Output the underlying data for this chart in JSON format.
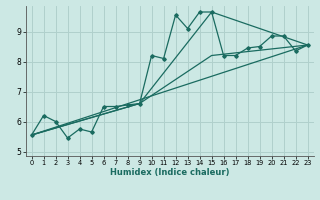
{
  "title": "",
  "xlabel": "Humidex (Indice chaleur)",
  "bg_color": "#cce8e4",
  "grid_color": "#b0d0cc",
  "line_color": "#1a6b60",
  "xlim": [
    -0.5,
    23.5
  ],
  "ylim": [
    4.85,
    9.85
  ],
  "yticks": [
    5,
    6,
    7,
    8,
    9
  ],
  "xticks": [
    0,
    1,
    2,
    3,
    4,
    5,
    6,
    7,
    8,
    9,
    10,
    11,
    12,
    13,
    14,
    15,
    16,
    17,
    18,
    19,
    20,
    21,
    22,
    23
  ],
  "series1_x": [
    0,
    1,
    2,
    3,
    4,
    5,
    6,
    7,
    8,
    9,
    10,
    11,
    12,
    13,
    14,
    15,
    16,
    17,
    18,
    19,
    20,
    21,
    22,
    23
  ],
  "series1_y": [
    5.55,
    6.2,
    6.0,
    5.45,
    5.75,
    5.65,
    6.5,
    6.5,
    6.55,
    6.6,
    8.2,
    8.1,
    9.55,
    9.1,
    9.65,
    9.65,
    8.2,
    8.2,
    8.45,
    8.5,
    8.85,
    8.85,
    8.35,
    8.55
  ],
  "series2_x": [
    0,
    23
  ],
  "series2_y": [
    5.55,
    8.55
  ],
  "series3_x": [
    0,
    9,
    15,
    23
  ],
  "series3_y": [
    5.55,
    6.6,
    8.2,
    8.55
  ],
  "series4_x": [
    0,
    9,
    15,
    23
  ],
  "series4_y": [
    5.55,
    6.6,
    9.65,
    8.55
  ]
}
